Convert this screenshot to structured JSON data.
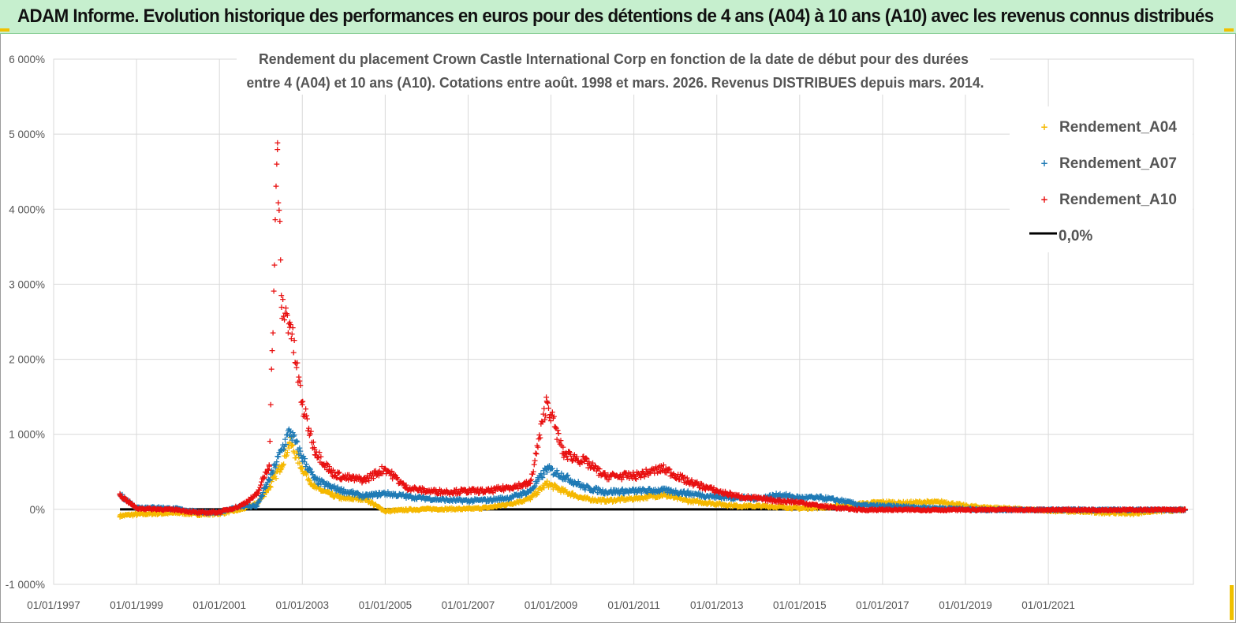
{
  "header": {
    "title": "ADAM Informe. Evolution historique des performances en euros pour des détentions de 4 ans (A04) à 10 ans (A10) avec les revenus connus distribués"
  },
  "colors": {
    "header_bg": "#c6efce",
    "A04": "#f5b800",
    "A07": "#1f7ab5",
    "A10": "#e81010",
    "zero_line": "#000000",
    "grid": "#d9d9d9"
  },
  "chart_data": {
    "type": "scatter",
    "title_lines": [
      "Rendement du placement Crown Castle International Corp en fonction de la date de début pour des durées",
      "entre 4 (A04) et 10 ans (A10). Cotations entre août. 1998 et mars. 2026. Revenus DISTRIBUES depuis mars. 2014."
    ],
    "xlabel": "",
    "ylabel": "",
    "ylim": [
      -10,
      60
    ],
    "y_ticks": [
      {
        "value": 60,
        "label": "6 000%"
      },
      {
        "value": 50,
        "label": "5 000%"
      },
      {
        "value": 40,
        "label": "4 000%"
      },
      {
        "value": 30,
        "label": "3 000%"
      },
      {
        "value": 20,
        "label": "2 000%"
      },
      {
        "value": 10,
        "label": "1 000%"
      },
      {
        "value": 0,
        "label": "0%"
      },
      {
        "value": -10,
        "label": "-1 000%"
      }
    ],
    "xlim": [
      1997.0,
      2024.5
    ],
    "x_ticks": [
      {
        "value": 1997,
        "label": "01/01/1997"
      },
      {
        "value": 1999,
        "label": "01/01/1999"
      },
      {
        "value": 2001,
        "label": "01/01/2001"
      },
      {
        "value": 2003,
        "label": "01/01/2003"
      },
      {
        "value": 2005,
        "label": "01/01/2005"
      },
      {
        "value": 2007,
        "label": "01/01/2007"
      },
      {
        "value": 2009,
        "label": "01/01/2009"
      },
      {
        "value": 2011,
        "label": "01/01/2011"
      },
      {
        "value": 2013,
        "label": "01/01/2013"
      },
      {
        "value": 2015,
        "label": "01/01/2015"
      },
      {
        "value": 2017,
        "label": "01/01/2017"
      },
      {
        "value": 2019,
        "label": "01/01/2019"
      },
      {
        "value": 2021,
        "label": "01/01/2021"
      }
    ],
    "legend": {
      "position": "top-right",
      "entries": [
        "Rendement_A04",
        "Rendement_A07",
        "Rendement_A10",
        "0,0%"
      ]
    },
    "series": [
      {
        "name": "Rendement_A04",
        "x": [
          1998.6,
          1999.0,
          1999.5,
          2000.0,
          2000.5,
          2001.0,
          2001.5,
          2001.9,
          2002.2,
          2002.5,
          2002.7,
          2003.0,
          2003.3,
          2003.7,
          2004.0,
          2004.5,
          2005.0,
          2005.5,
          2006.0,
          2006.5,
          2007.0,
          2007.5,
          2008.0,
          2008.5,
          2008.9,
          2009.3,
          2009.8,
          2010.3,
          2011.0,
          2011.7,
          2012.3,
          2013.0,
          2013.5,
          2014.0,
          2014.5,
          2015.0,
          2015.5,
          2016.0,
          2016.5,
          2017.0,
          2017.5,
          2018.0,
          2018.5,
          2019.0,
          2019.5,
          2020.0,
          2020.5,
          2021.0,
          2021.5,
          2022.0,
          2022.5,
          2023.0,
          2023.5,
          2024.0,
          2024.3
        ],
        "y": [
          -0.8,
          -0.6,
          -0.5,
          -0.4,
          -0.6,
          -0.5,
          0.0,
          0.8,
          3.0,
          6.0,
          9.0,
          5.5,
          3.0,
          2.0,
          1.5,
          1.5,
          -0.2,
          0.0,
          0.1,
          0.1,
          0.1,
          0.3,
          0.8,
          1.5,
          3.5,
          2.5,
          1.5,
          1.2,
          1.5,
          2.0,
          1.2,
          0.8,
          0.5,
          0.5,
          0.4,
          0.2,
          0.3,
          0.5,
          0.8,
          1.0,
          0.9,
          1.0,
          1.0,
          0.5,
          0.3,
          0.2,
          0.0,
          -0.1,
          -0.2,
          -0.3,
          -0.4,
          -0.5,
          -0.2,
          -0.1,
          0.0
        ]
      },
      {
        "name": "Rendement_A07",
        "x": [
          1998.6,
          1999.0,
          1999.5,
          2000.0,
          2000.5,
          2001.0,
          2001.5,
          2001.9,
          2002.2,
          2002.5,
          2002.7,
          2003.0,
          2003.3,
          2003.7,
          2004.0,
          2004.5,
          2005.0,
          2005.5,
          2006.0,
          2006.5,
          2007.0,
          2007.5,
          2008.0,
          2008.5,
          2008.9,
          2009.3,
          2009.8,
          2010.3,
          2011.0,
          2011.7,
          2012.3,
          2013.0,
          2013.5,
          2014.0,
          2014.5,
          2015.0,
          2015.5,
          2016.0,
          2016.5,
          2017.0,
          2017.5,
          2018.0,
          2018.5,
          2019.0,
          2019.5,
          2020.0,
          2020.5,
          2021.0,
          2021.5,
          2022.0,
          2022.5,
          2023.0,
          2023.5,
          2024.0,
          2024.3
        ],
        "y": [
          2.0,
          0.3,
          0.3,
          0.1,
          -0.3,
          -0.4,
          0.5,
          0.5,
          4.0,
          8.0,
          10.5,
          7.0,
          4.0,
          3.0,
          2.5,
          1.8,
          2.2,
          1.8,
          1.5,
          1.3,
          1.2,
          1.3,
          1.6,
          2.5,
          5.5,
          4.5,
          3.0,
          2.4,
          2.5,
          2.6,
          2.2,
          1.7,
          1.6,
          1.5,
          2.0,
          1.6,
          1.6,
          1.2,
          0.6,
          0.5,
          0.4,
          0.3,
          0.2,
          0.1,
          0.0,
          0.0,
          0.0,
          0.0,
          0.0,
          0.0,
          0.0,
          0.0,
          0.0,
          0.0,
          0.0
        ]
      },
      {
        "name": "Rendement_A10",
        "x": [
          1998.6,
          1999.0,
          1999.5,
          2000.0,
          2000.5,
          2001.0,
          2001.5,
          2001.9,
          2002.2,
          2002.4,
          2002.5,
          2002.7,
          2003.0,
          2003.3,
          2003.7,
          2004.0,
          2004.5,
          2005.0,
          2005.5,
          2006.0,
          2006.5,
          2007.0,
          2007.5,
          2008.0,
          2008.5,
          2008.9,
          2009.3,
          2009.8,
          2010.3,
          2011.0,
          2011.7,
          2012.3,
          2013.0,
          2013.5,
          2014.0,
          2014.5,
          2015.0,
          2015.5,
          2016.0,
          2016.5,
          2017.0,
          2017.5,
          2018.0,
          2018.5,
          2019.0,
          2019.5,
          2020.0,
          2020.5,
          2021.0,
          2021.5,
          2022.0,
          2022.5,
          2023.0,
          2023.5,
          2024.0,
          2024.3
        ],
        "y": [
          2.0,
          0.2,
          0.1,
          0.0,
          -0.4,
          -0.3,
          0.5,
          2.0,
          6.0,
          48.0,
          27.0,
          25.0,
          14.0,
          8.0,
          5.0,
          4.3,
          4.0,
          5.5,
          3.0,
          2.5,
          2.4,
          2.5,
          2.5,
          3.0,
          3.5,
          14.5,
          7.5,
          6.5,
          4.5,
          4.5,
          5.5,
          3.8,
          2.5,
          1.8,
          1.5,
          1.2,
          1.0,
          0.5,
          0.2,
          0.0,
          0.0,
          0.0,
          0.0,
          0.0,
          0.0,
          0.0,
          0.0,
          0.0,
          0.0,
          0.0,
          0.0,
          0.0,
          0.0,
          0.0,
          0.0,
          0.0
        ]
      },
      {
        "name": "0,0%",
        "x": [
          1998.6,
          2024.3
        ],
        "y": [
          0,
          0
        ]
      }
    ]
  }
}
